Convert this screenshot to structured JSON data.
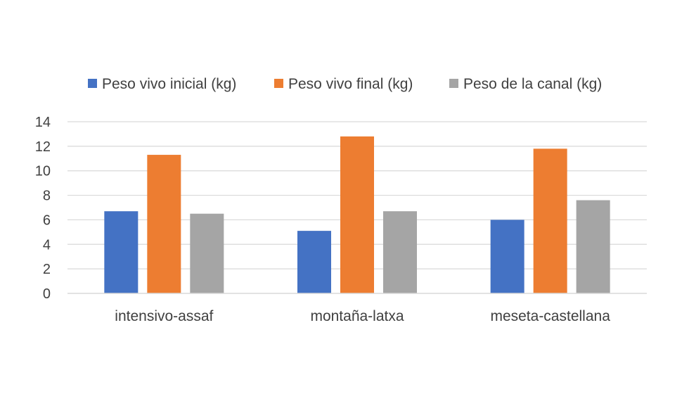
{
  "chart_data": {
    "type": "bar",
    "title": "",
    "xlabel": "",
    "ylabel": "",
    "categories": [
      "intensivo-assaf",
      "montaña-latxa",
      "meseta-castellana"
    ],
    "series": [
      {
        "name": "Peso vivo inicial (kg)",
        "color": "#4472c4",
        "values": [
          6.7,
          5.1,
          6.0
        ]
      },
      {
        "name": "Peso vivo final (kg)",
        "color": "#ed7d31",
        "values": [
          11.3,
          12.8,
          11.8
        ]
      },
      {
        "name": "Peso de la canal (kg)",
        "color": "#a5a5a5",
        "values": [
          6.5,
          6.7,
          7.6
        ]
      }
    ],
    "ylim": [
      0,
      14
    ],
    "yticks": [
      "0",
      "2",
      "4",
      "6",
      "8",
      "10",
      "12",
      "14"
    ],
    "ytick_values": [
      0,
      2,
      4,
      6,
      8,
      10,
      12,
      14
    ],
    "grid": true,
    "legend_position": "top"
  }
}
